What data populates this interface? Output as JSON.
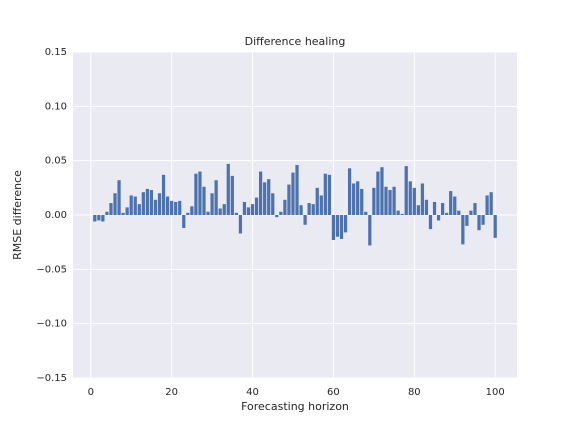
{
  "chart_data": {
    "type": "bar",
    "title": "Difference healing",
    "xlabel": "Forecasting horizon",
    "ylabel": "RMSE difference",
    "x": [
      1,
      2,
      3,
      4,
      5,
      6,
      7,
      8,
      9,
      10,
      11,
      12,
      13,
      14,
      15,
      16,
      17,
      18,
      19,
      20,
      21,
      22,
      23,
      24,
      25,
      26,
      27,
      28,
      29,
      30,
      31,
      32,
      33,
      34,
      35,
      36,
      37,
      38,
      39,
      40,
      41,
      42,
      43,
      44,
      45,
      46,
      47,
      48,
      49,
      50,
      51,
      52,
      53,
      54,
      55,
      56,
      57,
      58,
      59,
      60,
      61,
      62,
      63,
      64,
      65,
      66,
      67,
      68,
      69,
      70,
      71,
      72,
      73,
      74,
      75,
      76,
      77,
      78,
      79,
      80,
      81,
      82,
      83,
      84,
      85,
      86,
      87,
      88,
      89,
      90,
      91,
      92,
      93,
      94,
      95,
      96,
      97,
      98,
      99,
      100
    ],
    "values": [
      -0.006,
      -0.005,
      -0.006,
      0.003,
      0.011,
      0.02,
      0.032,
      0.002,
      0.007,
      0.018,
      0.017,
      0.01,
      0.021,
      0.024,
      0.023,
      0.014,
      0.02,
      0.037,
      0.017,
      0.013,
      0.012,
      0.013,
      -0.012,
      0.002,
      0.008,
      0.038,
      0.04,
      0.026,
      0.003,
      0.02,
      0.032,
      0.006,
      0.01,
      0.047,
      0.036,
      0.002,
      -0.017,
      0.012,
      0.007,
      0.01,
      0.016,
      0.04,
      0.03,
      0.033,
      0.02,
      -0.002,
      0.003,
      0.014,
      0.028,
      0.039,
      0.046,
      0.009,
      -0.009,
      0.011,
      0.01,
      0.025,
      0.018,
      0.038,
      0.037,
      -0.023,
      -0.02,
      -0.022,
      -0.016,
      0.043,
      0.029,
      0.031,
      0.024,
      0.003,
      -0.028,
      0.025,
      0.04,
      0.044,
      0.026,
      0.023,
      0.026,
      0.004,
      0.001,
      0.045,
      0.031,
      0.025,
      0.009,
      0.029,
      0.014,
      -0.013,
      0.012,
      -0.005,
      0.011,
      0.002,
      0.022,
      0.017,
      0.004,
      -0.027,
      -0.01,
      0.004,
      0.011,
      -0.014,
      -0.009,
      0.018,
      0.021,
      -0.021
    ],
    "color": "#4c72b0",
    "xlim": [
      -4.39,
      105.39
    ],
    "xticks": [
      0,
      20,
      40,
      60,
      80,
      100
    ],
    "ylim": [
      -0.15,
      0.15
    ],
    "yticks": [
      {
        "value": -0.15,
        "label": "−0.15"
      },
      {
        "value": -0.1,
        "label": "−0.10"
      },
      {
        "value": -0.05,
        "label": "−0.05"
      },
      {
        "value": 0,
        "label": "0.00"
      },
      0.05,
      {
        "value": 0.1,
        "label": "0.10"
      },
      0.15
    ],
    "grid": true
  }
}
